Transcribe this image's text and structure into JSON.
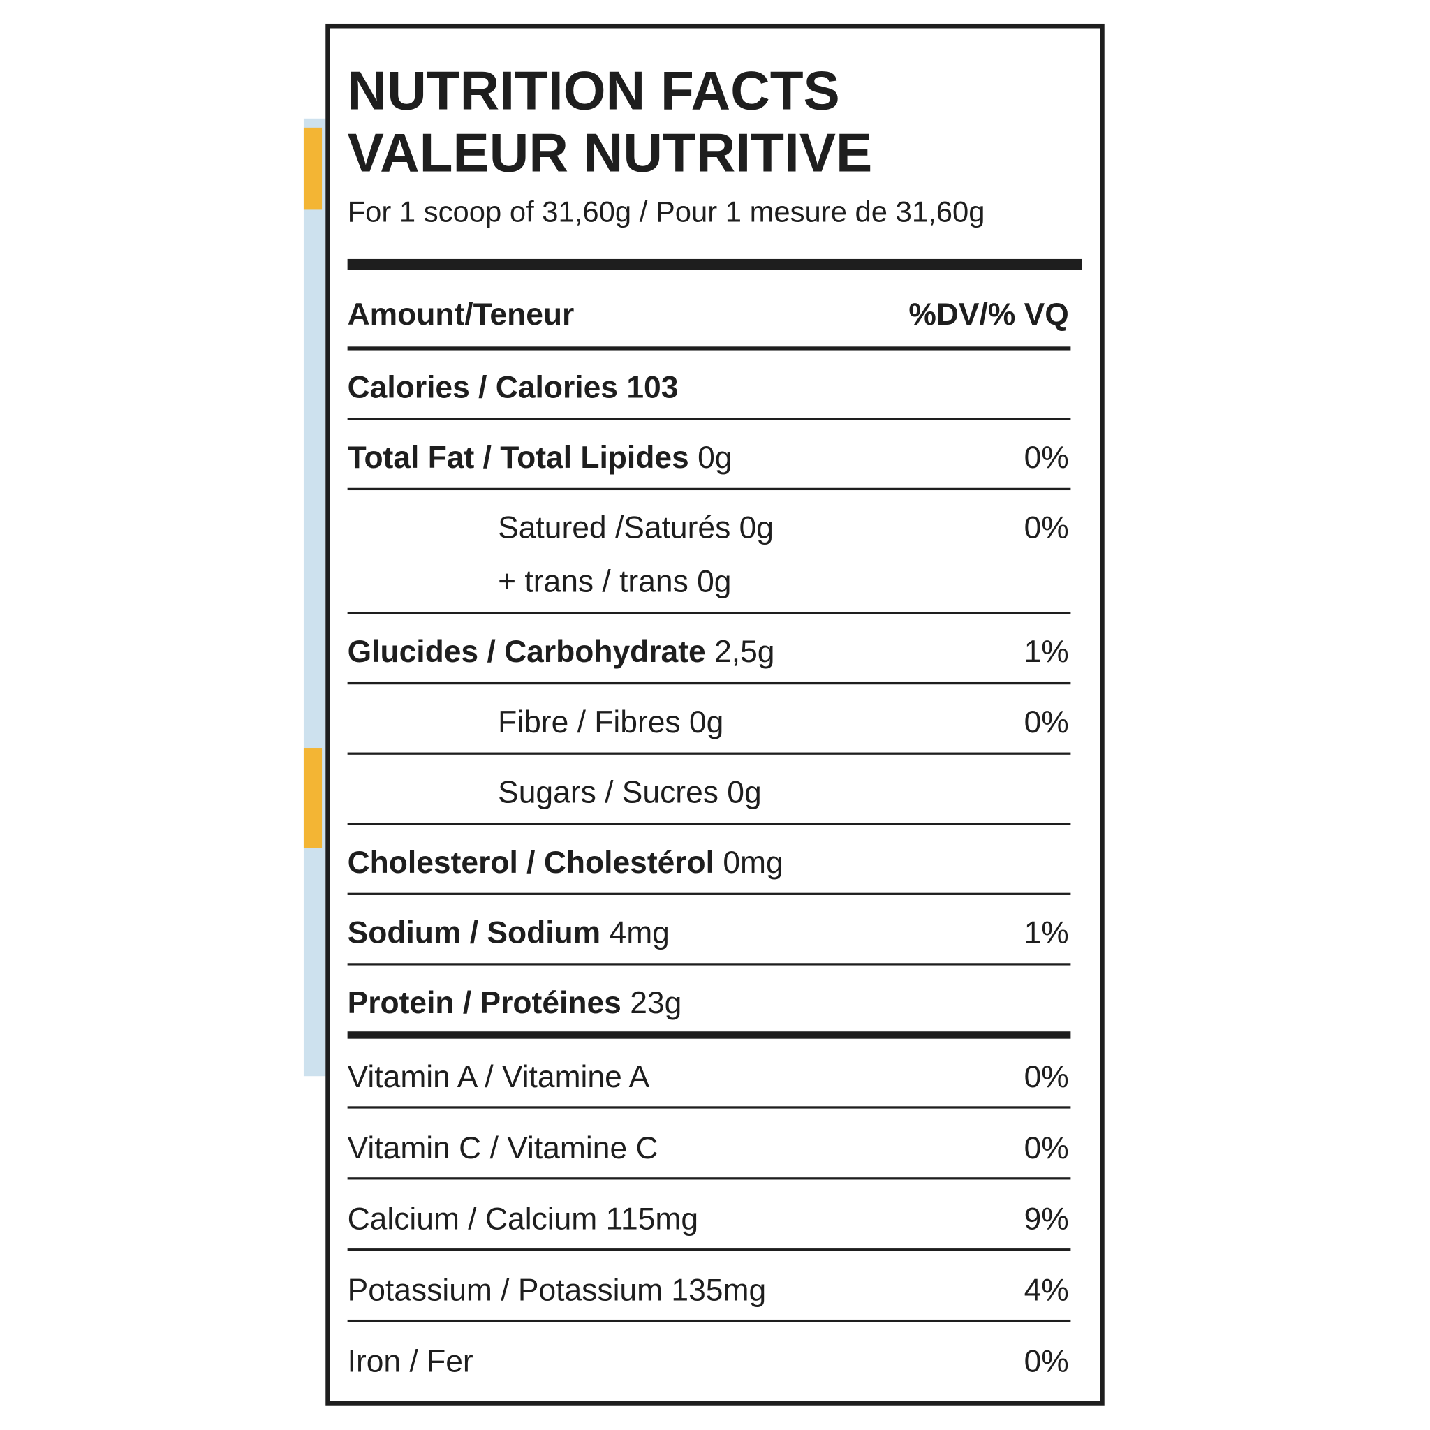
{
  "header": {
    "title_en": "NUTRITION FACTS",
    "title_fr": "VALEUR NUTRITIVE",
    "serving": "For 1 scoop of 31,60g / Pour 1 mesure de 31,60g"
  },
  "columns": {
    "amount": "Amount/Teneur",
    "dv": "%DV/% VQ"
  },
  "calories": "Calories / Calories 103",
  "nutrients": [
    {
      "name": "Total Fat / Total Lipides",
      "amount": "0g",
      "dv": "0%"
    },
    {
      "name": "Satured /Saturés",
      "amount": "0g",
      "dv": "0%",
      "sub": true,
      "extra": "+ trans / trans 0g"
    },
    {
      "name": "Glucides / Carbohydrate",
      "amount": "2,5g",
      "dv": "1%"
    },
    {
      "name": "Fibre / Fibres",
      "amount": "0g",
      "dv": "0%",
      "sub": true
    },
    {
      "name": "Sugars / Sucres",
      "amount": "0g",
      "sub": true
    },
    {
      "name": "Cholesterol / Cholestérol",
      "amount": "0mg"
    },
    {
      "name": "Sodium / Sodium",
      "amount": "4mg",
      "dv": "1%"
    },
    {
      "name": "Protein / Protéines",
      "amount": "23g"
    }
  ],
  "vitamins": [
    {
      "name": "Vitamin A / Vitamine A",
      "dv": "0%"
    },
    {
      "name": "Vitamin C / Vitamine C",
      "dv": "0%"
    },
    {
      "name": "Calcium / Calcium 115mg",
      "dv": "9%"
    },
    {
      "name": "Potassium / Potassium 135mg",
      "dv": "4%"
    },
    {
      "name": "Iron / Fer",
      "dv": "0%"
    }
  ]
}
